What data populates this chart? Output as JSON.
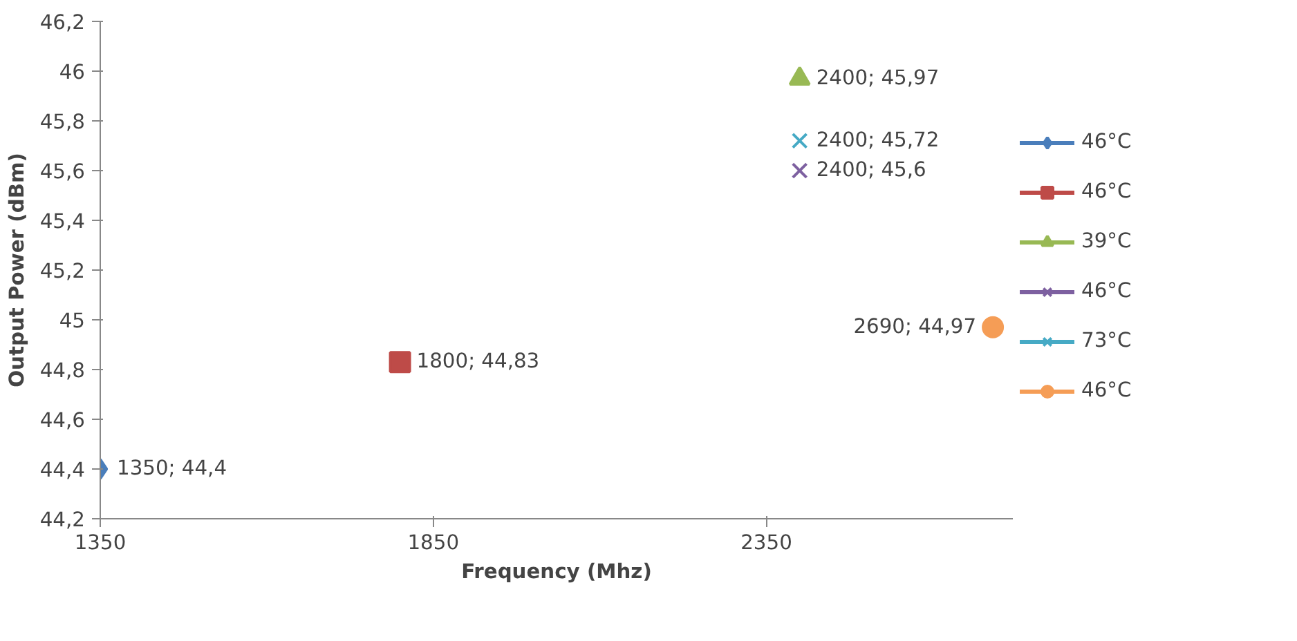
{
  "chart_data": {
    "type": "scatter",
    "xlabel": "Frequency (Mhz)",
    "ylabel": "Output Power (dBm)",
    "xlim": [
      1350,
      2720
    ],
    "xticks": [
      1350,
      1850,
      2350
    ],
    "ylim": [
      44.2,
      46.2
    ],
    "yticks": [
      {
        "value": 44.2,
        "label": "44,2"
      },
      {
        "value": 44.4,
        "label": "44,4"
      },
      {
        "value": 44.6,
        "label": "44,6"
      },
      {
        "value": 44.8,
        "label": "44,8"
      },
      {
        "value": 45,
        "label": "45"
      },
      {
        "value": 45.2,
        "label": "45,2"
      },
      {
        "value": 45.4,
        "label": "45,4"
      },
      {
        "value": 45.6,
        "label": "45,6"
      },
      {
        "value": 45.8,
        "label": "45,8"
      },
      {
        "value": 46,
        "label": "46"
      },
      {
        "value": 46.2,
        "label": "46,2"
      }
    ],
    "grid": false,
    "legend": "right",
    "series": [
      {
        "name": "46°C",
        "color": "#4a7ebb",
        "marker": "diamond",
        "x": [
          1350
        ],
        "values": [
          44.4
        ],
        "value_labels": [
          "1350; 44,4"
        ]
      },
      {
        "name": "46°C",
        "color": "#be4b48",
        "marker": "square",
        "x": [
          1800
        ],
        "values": [
          44.83
        ],
        "value_labels": [
          "1800; 44,83"
        ]
      },
      {
        "name": "39°C",
        "color": "#98b954",
        "marker": "triangle",
        "x": [
          2400
        ],
        "values": [
          45.97
        ],
        "value_labels": [
          "2400; 45,97"
        ]
      },
      {
        "name": "46°C",
        "color": "#7d60a0",
        "marker": "cross",
        "x": [
          2400
        ],
        "values": [
          45.6
        ],
        "value_labels": [
          "2400; 45,6"
        ]
      },
      {
        "name": "73°C",
        "color": "#46aac5",
        "marker": "cross",
        "x": [
          2400
        ],
        "values": [
          45.72
        ],
        "value_labels": [
          "2400; 45,72"
        ]
      },
      {
        "name": "46°C",
        "color": "#f59d56",
        "marker": "circle",
        "x": [
          2690
        ],
        "values": [
          44.97
        ],
        "value_labels": [
          "2690; 44,97"
        ]
      }
    ]
  }
}
